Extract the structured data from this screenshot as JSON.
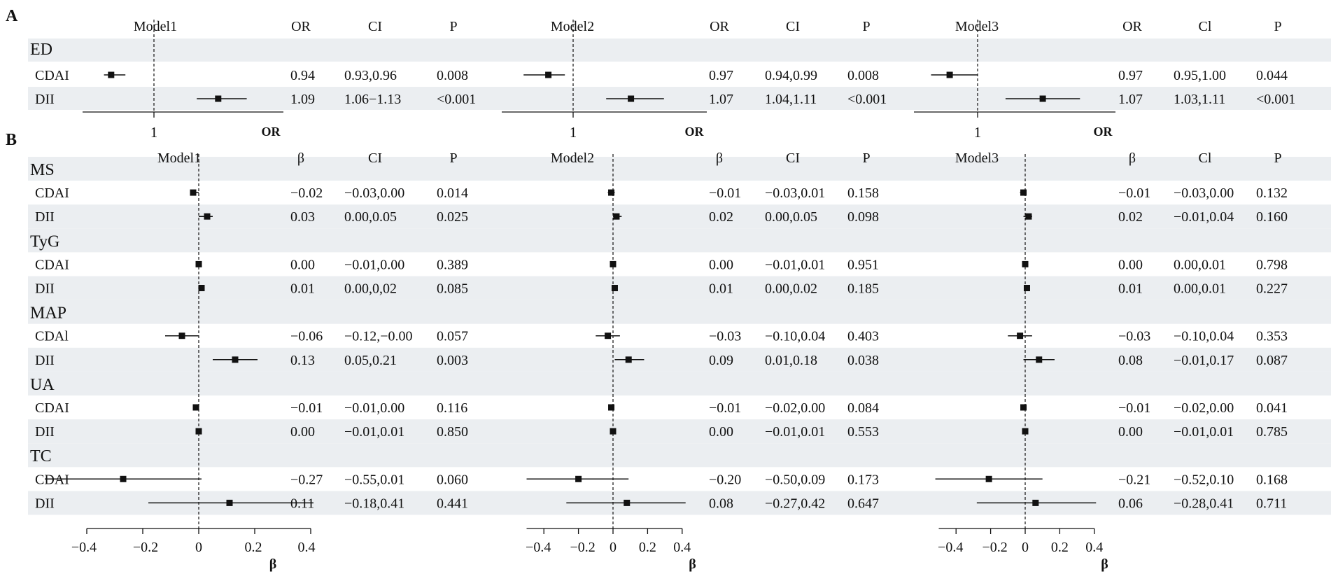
{
  "colors": {
    "band": "#ebeef1",
    "ink": "#111111",
    "background": "#ffffff"
  },
  "panels": [
    {
      "id": "A",
      "label": "A",
      "est_header": "OR",
      "ci_header": "CI",
      "ci_header_alt": "Cl",
      "p_header": "P",
      "axis_label": "OR",
      "groups": [
        {
          "name": "ED",
          "rows": [
            {
              "label": "CDAI",
              "models": [
                {
                  "est": "0.94",
                  "ci": "0.93,0.96",
                  "p": "0.008"
                },
                {
                  "est": "0.97",
                  "ci": "0.94,0.99",
                  "p": "0.008"
                },
                {
                  "est": "0.97",
                  "ci": "0.95,1.00",
                  "p": "0.044"
                }
              ]
            },
            {
              "label": "DII",
              "models": [
                {
                  "est": "1.09",
                  "ci": "1.06−1.13",
                  "p": "<0.001"
                },
                {
                  "est": "1.07",
                  "ci": "1.04,1.11",
                  "p": "<0.001"
                },
                {
                  "est": "1.07",
                  "ci": "1.03,1.11",
                  "p": "<0.001"
                }
              ]
            }
          ]
        }
      ]
    },
    {
      "id": "B",
      "label": "B",
      "est_header": "β",
      "ci_header": "CI",
      "ci_header_alt": "Cl",
      "p_header": "P",
      "axis_label": "β",
      "groups": [
        {
          "name": "MS",
          "rows": [
            {
              "label": "CDAI",
              "models": [
                {
                  "est": "−0.02",
                  "ci": "−0.03,0.00",
                  "p": "0.014"
                },
                {
                  "est": "−0.01",
                  "ci": "−0.03,0.01",
                  "p": "0.158"
                },
                {
                  "est": "−0.01",
                  "ci": "−0.03,0.00",
                  "p": "0.132"
                }
              ]
            },
            {
              "label": "DII",
              "models": [
                {
                  "est": "0.03",
                  "ci": "0.00,0.05",
                  "p": "0.025"
                },
                {
                  "est": "0.02",
                  "ci": "0.00,0.05",
                  "p": "0.098"
                },
                {
                  "est": "0.02",
                  "ci": "−0.01,0.04",
                  "p": "0.160"
                }
              ]
            }
          ]
        },
        {
          "name": "TyG",
          "rows": [
            {
              "label": "CDAI",
              "models": [
                {
                  "est": "0.00",
                  "ci": "−0.01,0.00",
                  "p": "0.389"
                },
                {
                  "est": "0.00",
                  "ci": "−0.01,0.01",
                  "p": "0.951"
                },
                {
                  "est": "0.00",
                  "ci": "0.00,0.01",
                  "p": "0.798"
                }
              ]
            },
            {
              "label": "DII",
              "models": [
                {
                  "est": "0.01",
                  "ci": "0.00,0,02",
                  "p": "0.085"
                },
                {
                  "est": "0.01",
                  "ci": "0.00,0.02",
                  "p": "0.185"
                },
                {
                  "est": "0.01",
                  "ci": "0.00,0.01",
                  "p": "0.227"
                }
              ]
            }
          ]
        },
        {
          "name": "MAP",
          "rows": [
            {
              "label": "CDAl",
              "models": [
                {
                  "est": "−0.06",
                  "ci": "−0.12,−0.00",
                  "p": "0.057"
                },
                {
                  "est": "−0.03",
                  "ci": "−0.10,0.04",
                  "p": "0.403"
                },
                {
                  "est": "−0.03",
                  "ci": "−0.10,0.04",
                  "p": "0.353"
                }
              ]
            },
            {
              "label": "DII",
              "models": [
                {
                  "est": "0.13",
                  "ci": "0.05,0.21",
                  "p": "0.003"
                },
                {
                  "est": "0.09",
                  "ci": "0.01,0.18",
                  "p": "0.038"
                },
                {
                  "est": "0.08",
                  "ci": "−0.01,0.17",
                  "p": "0.087"
                }
              ]
            }
          ]
        },
        {
          "name": "UA",
          "rows": [
            {
              "label": "CDAI",
              "models": [
                {
                  "est": "−0.01",
                  "ci": "−0.01,0.00",
                  "p": "0.116"
                },
                {
                  "est": "−0.01",
                  "ci": "−0.02,0.00",
                  "p": "0.084"
                },
                {
                  "est": "−0.01",
                  "ci": "−0.02,0.00",
                  "p": "0.041"
                }
              ]
            },
            {
              "label": "DII",
              "models": [
                {
                  "est": "0.00",
                  "ci": "−0.01,0.01",
                  "p": "0.850"
                },
                {
                  "est": "0.00",
                  "ci": "−0.01,0.01",
                  "p": "0.553"
                },
                {
                  "est": "0.00",
                  "ci": "−0.01,0.01",
                  "p": "0.785"
                }
              ]
            }
          ]
        },
        {
          "name": "TC",
          "rows": [
            {
              "label": "CDAI",
              "models": [
                {
                  "est": "−0.27",
                  "ci": "−0.55,0.01",
                  "p": "0.060"
                },
                {
                  "est": "−0.20",
                  "ci": "−0.50,0.09",
                  "p": "0.173"
                },
                {
                  "est": "−0.21",
                  "ci": "−0.52,0.10",
                  "p": "0.168"
                }
              ]
            },
            {
              "label": "DII",
              "models": [
                {
                  "est": "0.11",
                  "ci": "−0.18,0.41",
                  "p": "0.441"
                },
                {
                  "est": "0.08",
                  "ci": "−0.27,0.42",
                  "p": "0.647"
                },
                {
                  "est": "0.06",
                  "ci": "−0.28,0.41",
                  "p": "0.711"
                }
              ]
            }
          ]
        }
      ]
    }
  ],
  "chart_data": [
    {
      "type": "forest",
      "panel": "A",
      "xlabel": "OR",
      "reference_line": 1,
      "x_ticks": [
        1
      ],
      "models": [
        {
          "name": "Model1",
          "series": [
            {
              "group": "ED",
              "label": "CDAI",
              "est": 0.94,
              "lo": 0.93,
              "hi": 0.96
            },
            {
              "group": "ED",
              "label": "DII",
              "est": 1.09,
              "lo": 1.06,
              "hi": 1.13
            }
          ]
        },
        {
          "name": "Model2",
          "series": [
            {
              "group": "ED",
              "label": "CDAI",
              "est": 0.97,
              "lo": 0.94,
              "hi": 0.99
            },
            {
              "group": "ED",
              "label": "DII",
              "est": 1.07,
              "lo": 1.04,
              "hi": 1.11
            }
          ]
        },
        {
          "name": "Model3",
          "series": [
            {
              "group": "ED",
              "label": "CDAI",
              "est": 0.97,
              "lo": 0.95,
              "hi": 1.0
            },
            {
              "group": "ED",
              "label": "DII",
              "est": 1.07,
              "lo": 1.03,
              "hi": 1.11
            }
          ]
        }
      ]
    },
    {
      "type": "forest",
      "panel": "B",
      "xlabel": "β",
      "reference_line": 0,
      "models": [
        {
          "name": "Model1",
          "x_ticks": [
            "−0.4",
            "−0.2",
            "0",
            "0.2",
            "0.4"
          ],
          "series": [
            {
              "group": "MS",
              "label": "CDAI",
              "est": -0.02,
              "lo": -0.03,
              "hi": 0.0
            },
            {
              "group": "MS",
              "label": "DII",
              "est": 0.03,
              "lo": 0.0,
              "hi": 0.05
            },
            {
              "group": "TyG",
              "label": "CDAI",
              "est": 0.0,
              "lo": -0.01,
              "hi": 0.0
            },
            {
              "group": "TyG",
              "label": "DII",
              "est": 0.01,
              "lo": 0.0,
              "hi": 0.02
            },
            {
              "group": "MAP",
              "label": "CDAI",
              "est": -0.06,
              "lo": -0.12,
              "hi": 0.0
            },
            {
              "group": "MAP",
              "label": "DII",
              "est": 0.13,
              "lo": 0.05,
              "hi": 0.21
            },
            {
              "group": "UA",
              "label": "CDAI",
              "est": -0.01,
              "lo": -0.01,
              "hi": 0.0
            },
            {
              "group": "UA",
              "label": "DII",
              "est": 0.0,
              "lo": -0.01,
              "hi": 0.01
            },
            {
              "group": "TC",
              "label": "CDAI",
              "est": -0.27,
              "lo": -0.55,
              "hi": 0.01
            },
            {
              "group": "TC",
              "label": "DII",
              "est": 0.11,
              "lo": -0.18,
              "hi": 0.41
            }
          ]
        },
        {
          "name": "Model2",
          "x_ticks": [
            "−0.4",
            "−0.2",
            "0",
            "0.2",
            "0.4"
          ],
          "series": [
            {
              "group": "MS",
              "label": "CDAI",
              "est": -0.01,
              "lo": -0.03,
              "hi": 0.01
            },
            {
              "group": "MS",
              "label": "DII",
              "est": 0.02,
              "lo": 0.0,
              "hi": 0.05
            },
            {
              "group": "TyG",
              "label": "CDAI",
              "est": 0.0,
              "lo": -0.01,
              "hi": 0.01
            },
            {
              "group": "TyG",
              "label": "DII",
              "est": 0.01,
              "lo": 0.0,
              "hi": 0.02
            },
            {
              "group": "MAP",
              "label": "CDAI",
              "est": -0.03,
              "lo": -0.1,
              "hi": 0.04
            },
            {
              "group": "MAP",
              "label": "DII",
              "est": 0.09,
              "lo": 0.01,
              "hi": 0.18
            },
            {
              "group": "UA",
              "label": "CDAI",
              "est": -0.01,
              "lo": -0.02,
              "hi": 0.0
            },
            {
              "group": "UA",
              "label": "DII",
              "est": 0.0,
              "lo": -0.01,
              "hi": 0.01
            },
            {
              "group": "TC",
              "label": "CDAI",
              "est": -0.2,
              "lo": -0.5,
              "hi": 0.09
            },
            {
              "group": "TC",
              "label": "DII",
              "est": 0.08,
              "lo": -0.27,
              "hi": 0.42
            }
          ]
        },
        {
          "name": "Model3",
          "x_ticks": [
            "−0.4",
            "−0.2",
            "0",
            "0.2",
            "0.4"
          ],
          "series": [
            {
              "group": "MS",
              "label": "CDAI",
              "est": -0.01,
              "lo": -0.03,
              "hi": 0.0
            },
            {
              "group": "MS",
              "label": "DII",
              "est": 0.02,
              "lo": -0.01,
              "hi": 0.04
            },
            {
              "group": "TyG",
              "label": "CDAI",
              "est": 0.0,
              "lo": 0.0,
              "hi": 0.01
            },
            {
              "group": "TyG",
              "label": "DII",
              "est": 0.01,
              "lo": 0.0,
              "hi": 0.01
            },
            {
              "group": "MAP",
              "label": "CDAI",
              "est": -0.03,
              "lo": -0.1,
              "hi": 0.04
            },
            {
              "group": "MAP",
              "label": "DII",
              "est": 0.08,
              "lo": -0.01,
              "hi": 0.17
            },
            {
              "group": "UA",
              "label": "CDAI",
              "est": -0.01,
              "lo": -0.02,
              "hi": 0.0
            },
            {
              "group": "UA",
              "label": "DII",
              "est": 0.0,
              "lo": -0.01,
              "hi": 0.01
            },
            {
              "group": "TC",
              "label": "CDAI",
              "est": -0.21,
              "lo": -0.52,
              "hi": 0.1
            },
            {
              "group": "TC",
              "label": "DII",
              "est": 0.06,
              "lo": -0.28,
              "hi": 0.41
            }
          ]
        }
      ]
    }
  ]
}
